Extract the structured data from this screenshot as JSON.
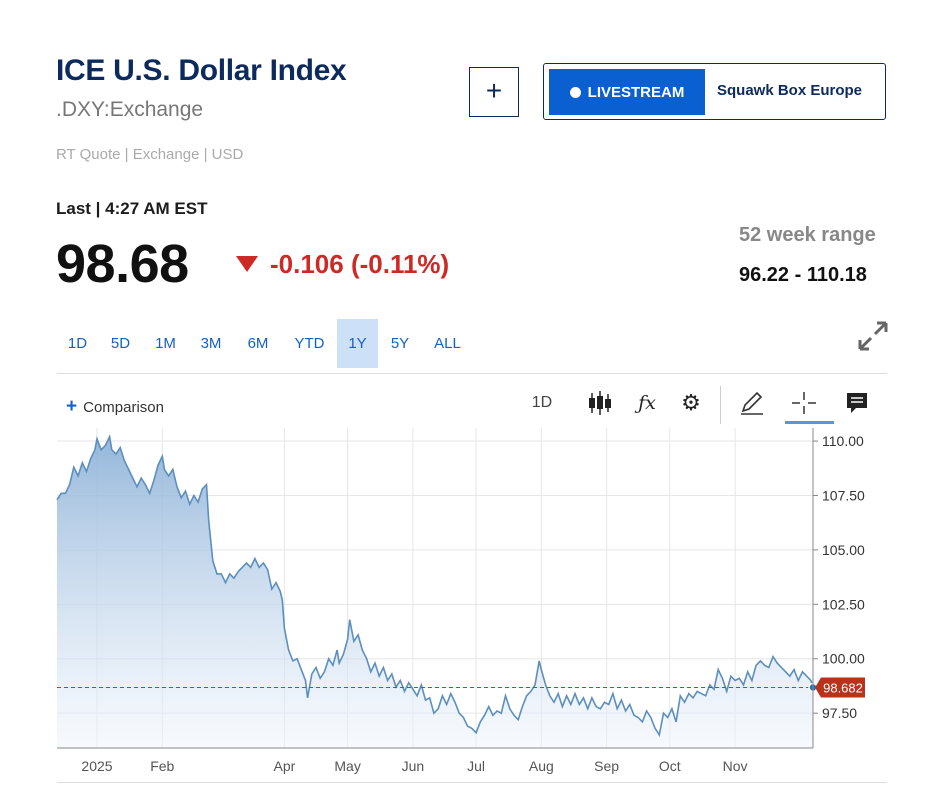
{
  "header": {
    "title": "ICE U.S. Dollar Index",
    "symbol": ".DXY:Exchange",
    "quote_meta": "RT Quote | Exchange | USD",
    "add_button_label": "+",
    "livestream_label": "LIVESTREAM",
    "show_name": "Squawk Box Europe"
  },
  "quote": {
    "last_time": "Last | 4:27 AM EST",
    "price": "98.68",
    "change": "-0.106 (-0.11%)",
    "range_label": "52 week range",
    "range_value": "96.22 - 110.18"
  },
  "tabs": [
    {
      "label": "1D"
    },
    {
      "label": "5D"
    },
    {
      "label": "1M"
    },
    {
      "label": "3M"
    },
    {
      "label": "6M"
    },
    {
      "label": "YTD"
    },
    {
      "label": "1Y"
    },
    {
      "label": "5Y"
    },
    {
      "label": "ALL"
    }
  ],
  "active_tab": "1Y",
  "toolbar": {
    "comparison_label": "Comparison",
    "interval_label": "1D",
    "icons": [
      "candlestick-icon",
      "studies-fx-icon",
      "settings-gear-icon",
      "draw-pencil-icon",
      "crosshair-icon",
      "comment-icon"
    ]
  },
  "colors": {
    "brand_navy": "#0d2a5c",
    "accent_blue": "#0a5fd1",
    "down_red": "#cd2a26",
    "line": "#5b8fbe",
    "price_tag": "#b8321c"
  },
  "chart_data": {
    "type": "area",
    "ylim": [
      95.9,
      110.6
    ],
    "y_ticks": [
      110.0,
      107.5,
      105.0,
      102.5,
      100.0,
      97.5
    ],
    "y_tick_labels": [
      "110.00",
      "107.50",
      "105.00",
      "102.50",
      "100.00",
      "97.50"
    ],
    "x_ticks": [
      {
        "label": "2025",
        "x": 1
      },
      {
        "label": "Feb",
        "x": 32
      },
      {
        "label": "Apr",
        "x": 90
      },
      {
        "label": "May",
        "x": 120
      },
      {
        "label": "Jun",
        "x": 151
      },
      {
        "label": "Jul",
        "x": 181
      },
      {
        "label": "Aug",
        "x": 212
      },
      {
        "label": "Sep",
        "x": 243
      },
      {
        "label": "Oct",
        "x": 273
      },
      {
        "label": "Nov",
        "x": 304
      }
    ],
    "xlim": [
      -18,
      341
    ],
    "last_value": 98.68,
    "last_label": "98.682",
    "grid": true,
    "series": [
      {
        "values": [
          [
            -18,
            107.3
          ],
          [
            -16,
            107.6
          ],
          [
            -14,
            107.6
          ],
          [
            -12,
            108.0
          ],
          [
            -10,
            108.8
          ],
          [
            -8,
            108.4
          ],
          [
            -6,
            109.0
          ],
          [
            -4,
            108.6
          ],
          [
            -2,
            109.2
          ],
          [
            0,
            109.6
          ],
          [
            1,
            110.1
          ],
          [
            3,
            109.6
          ],
          [
            5,
            109.8
          ],
          [
            7,
            110.2
          ],
          [
            8,
            109.6
          ],
          [
            10,
            109.4
          ],
          [
            12,
            109.7
          ],
          [
            14,
            109.1
          ],
          [
            16,
            108.7
          ],
          [
            18,
            108.3
          ],
          [
            20,
            107.9
          ],
          [
            22,
            108.3
          ],
          [
            24,
            108.0
          ],
          [
            26,
            107.6
          ],
          [
            28,
            108.2
          ],
          [
            30,
            108.9
          ],
          [
            32,
            109.3
          ],
          [
            33,
            108.7
          ],
          [
            35,
            108.4
          ],
          [
            37,
            108.7
          ],
          [
            39,
            107.9
          ],
          [
            41,
            107.4
          ],
          [
            43,
            107.7
          ],
          [
            45,
            107.1
          ],
          [
            47,
            107.5
          ],
          [
            49,
            107.2
          ],
          [
            51,
            107.8
          ],
          [
            53,
            108.0
          ],
          [
            54,
            106.4
          ],
          [
            56,
            104.5
          ],
          [
            58,
            103.9
          ],
          [
            60,
            103.9
          ],
          [
            62,
            103.5
          ],
          [
            64,
            103.9
          ],
          [
            66,
            103.7
          ],
          [
            68,
            104.0
          ],
          [
            70,
            104.2
          ],
          [
            72,
            104.4
          ],
          [
            74,
            104.2
          ],
          [
            76,
            104.6
          ],
          [
            78,
            104.2
          ],
          [
            80,
            104.4
          ],
          [
            82,
            104.1
          ],
          [
            84,
            103.2
          ],
          [
            86,
            103.5
          ],
          [
            88,
            103.1
          ],
          [
            89,
            102.7
          ],
          [
            90,
            101.4
          ],
          [
            92,
            100.4
          ],
          [
            94,
            99.9
          ],
          [
            96,
            100.0
          ],
          [
            98,
            99.5
          ],
          [
            100,
            99.0
          ],
          [
            101,
            98.2
          ],
          [
            103,
            99.3
          ],
          [
            105,
            99.6
          ],
          [
            107,
            99.1
          ],
          [
            109,
            99.4
          ],
          [
            111,
            100.0
          ],
          [
            113,
            99.7
          ],
          [
            115,
            100.4
          ],
          [
            116,
            99.8
          ],
          [
            118,
            100.2
          ],
          [
            120,
            100.9
          ],
          [
            121,
            101.8
          ],
          [
            123,
            100.8
          ],
          [
            125,
            101.1
          ],
          [
            127,
            100.4
          ],
          [
            129,
            100.0
          ],
          [
            131,
            99.4
          ],
          [
            133,
            99.8
          ],
          [
            135,
            99.2
          ],
          [
            137,
            99.6
          ],
          [
            139,
            99.0
          ],
          [
            141,
            99.3
          ],
          [
            143,
            98.7
          ],
          [
            145,
            99.0
          ],
          [
            147,
            98.5
          ],
          [
            149,
            98.9
          ],
          [
            151,
            98.6
          ],
          [
            153,
            98.3
          ],
          [
            155,
            98.8
          ],
          [
            157,
            98.1
          ],
          [
            159,
            98.2
          ],
          [
            161,
            97.5
          ],
          [
            163,
            97.7
          ],
          [
            165,
            98.3
          ],
          [
            167,
            97.9
          ],
          [
            169,
            98.4
          ],
          [
            171,
            98.0
          ],
          [
            173,
            97.5
          ],
          [
            175,
            97.3
          ],
          [
            177,
            96.9
          ],
          [
            179,
            96.8
          ],
          [
            181,
            96.6
          ],
          [
            183,
            97.1
          ],
          [
            185,
            97.4
          ],
          [
            187,
            97.8
          ],
          [
            189,
            97.4
          ],
          [
            191,
            97.6
          ],
          [
            193,
            97.5
          ],
          [
            195,
            98.3
          ],
          [
            197,
            97.7
          ],
          [
            199,
            97.4
          ],
          [
            201,
            97.2
          ],
          [
            203,
            97.8
          ],
          [
            205,
            98.3
          ],
          [
            207,
            98.5
          ],
          [
            209,
            98.8
          ],
          [
            211,
            99.9
          ],
          [
            212,
            99.5
          ],
          [
            214,
            98.8
          ],
          [
            216,
            98.3
          ],
          [
            218,
            98.0
          ],
          [
            220,
            98.4
          ],
          [
            222,
            97.8
          ],
          [
            224,
            98.3
          ],
          [
            226,
            97.9
          ],
          [
            228,
            98.4
          ],
          [
            230,
            97.9
          ],
          [
            232,
            98.2
          ],
          [
            234,
            97.7
          ],
          [
            236,
            98.2
          ],
          [
            238,
            97.8
          ],
          [
            240,
            97.7
          ],
          [
            242,
            98.0
          ],
          [
            244,
            97.9
          ],
          [
            246,
            98.4
          ],
          [
            248,
            97.7
          ],
          [
            250,
            98.1
          ],
          [
            252,
            97.6
          ],
          [
            254,
            97.9
          ],
          [
            256,
            97.4
          ],
          [
            258,
            97.3
          ],
          [
            260,
            97.1
          ],
          [
            262,
            97.6
          ],
          [
            264,
            97.3
          ],
          [
            266,
            96.8
          ],
          [
            268,
            96.5
          ],
          [
            270,
            97.5
          ],
          [
            272,
            97.3
          ],
          [
            274,
            97.7
          ],
          [
            276,
            97.1
          ],
          [
            278,
            98.3
          ],
          [
            280,
            98.0
          ],
          [
            282,
            98.4
          ],
          [
            284,
            98.2
          ],
          [
            286,
            98.5
          ],
          [
            288,
            98.4
          ],
          [
            290,
            98.3
          ],
          [
            292,
            98.8
          ],
          [
            294,
            98.6
          ],
          [
            296,
            99.5
          ],
          [
            298,
            99.1
          ],
          [
            300,
            98.5
          ],
          [
            302,
            99.2
          ],
          [
            304,
            99.0
          ],
          [
            306,
            99.1
          ],
          [
            308,
            98.8
          ],
          [
            310,
            99.4
          ],
          [
            312,
            99.0
          ],
          [
            314,
            99.7
          ],
          [
            316,
            99.9
          ],
          [
            318,
            99.7
          ],
          [
            320,
            99.6
          ],
          [
            322,
            100.1
          ],
          [
            324,
            99.8
          ],
          [
            326,
            99.6
          ],
          [
            328,
            99.4
          ],
          [
            330,
            99.2
          ],
          [
            332,
            99.5
          ],
          [
            334,
            99.0
          ],
          [
            336,
            99.4
          ],
          [
            338,
            99.2
          ],
          [
            340,
            99.0
          ],
          [
            341,
            98.68
          ]
        ]
      }
    ]
  }
}
